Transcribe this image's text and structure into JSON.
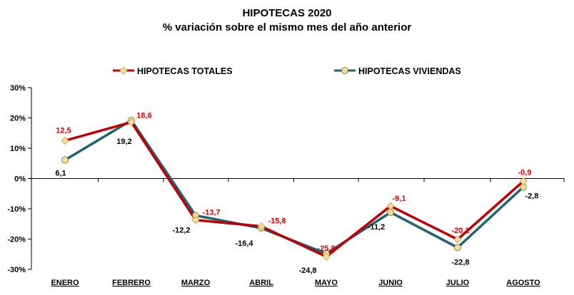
{
  "chart_data": {
    "type": "line",
    "title": "HIPOTECAS 2020",
    "subtitle": "% variación sobre el mismo mes del año anterior",
    "categories": [
      "ENERO",
      "FEBRERO",
      "MARZO",
      "ABRIL",
      "MAYO",
      "JUNIO",
      "JULIO",
      "AGOSTO"
    ],
    "ylim": [
      -30,
      30
    ],
    "yticks": [
      -30,
      -20,
      -10,
      0,
      10,
      20,
      30
    ],
    "ytick_labels": [
      "-30%",
      "-20%",
      "-10%",
      "0%",
      "10%",
      "20%",
      "30%"
    ],
    "grid": false,
    "legend": "top",
    "series": [
      {
        "name": "HIPOTECAS TOTALES",
        "color": "#c00000",
        "marker_color": "#f5dd9a",
        "marker": "diamond",
        "label_color": "#e00000",
        "values": [
          12.5,
          18.6,
          -13.7,
          -15.8,
          -25.8,
          -9.1,
          -20.1,
          -0.9
        ],
        "labels": [
          "12,5",
          "18,6",
          "-13,7",
          "-15,8",
          "-25,8",
          "-9,1",
          "-20,1",
          "-0,9"
        ]
      },
      {
        "name": "HIPOTECAS VIVIENDAS",
        "color": "#1f6471",
        "marker_color": "#f5dd9a",
        "marker": "circle",
        "label_color": "#000000",
        "values": [
          6.1,
          19.2,
          -12.2,
          -16.4,
          -24.8,
          -11.2,
          -22.8,
          -2.8
        ],
        "labels": [
          "6,1",
          "19,2",
          "-12,2",
          "-16,4",
          "-24,8",
          "-11,2",
          "-22,8",
          "-2,8"
        ]
      }
    ]
  }
}
